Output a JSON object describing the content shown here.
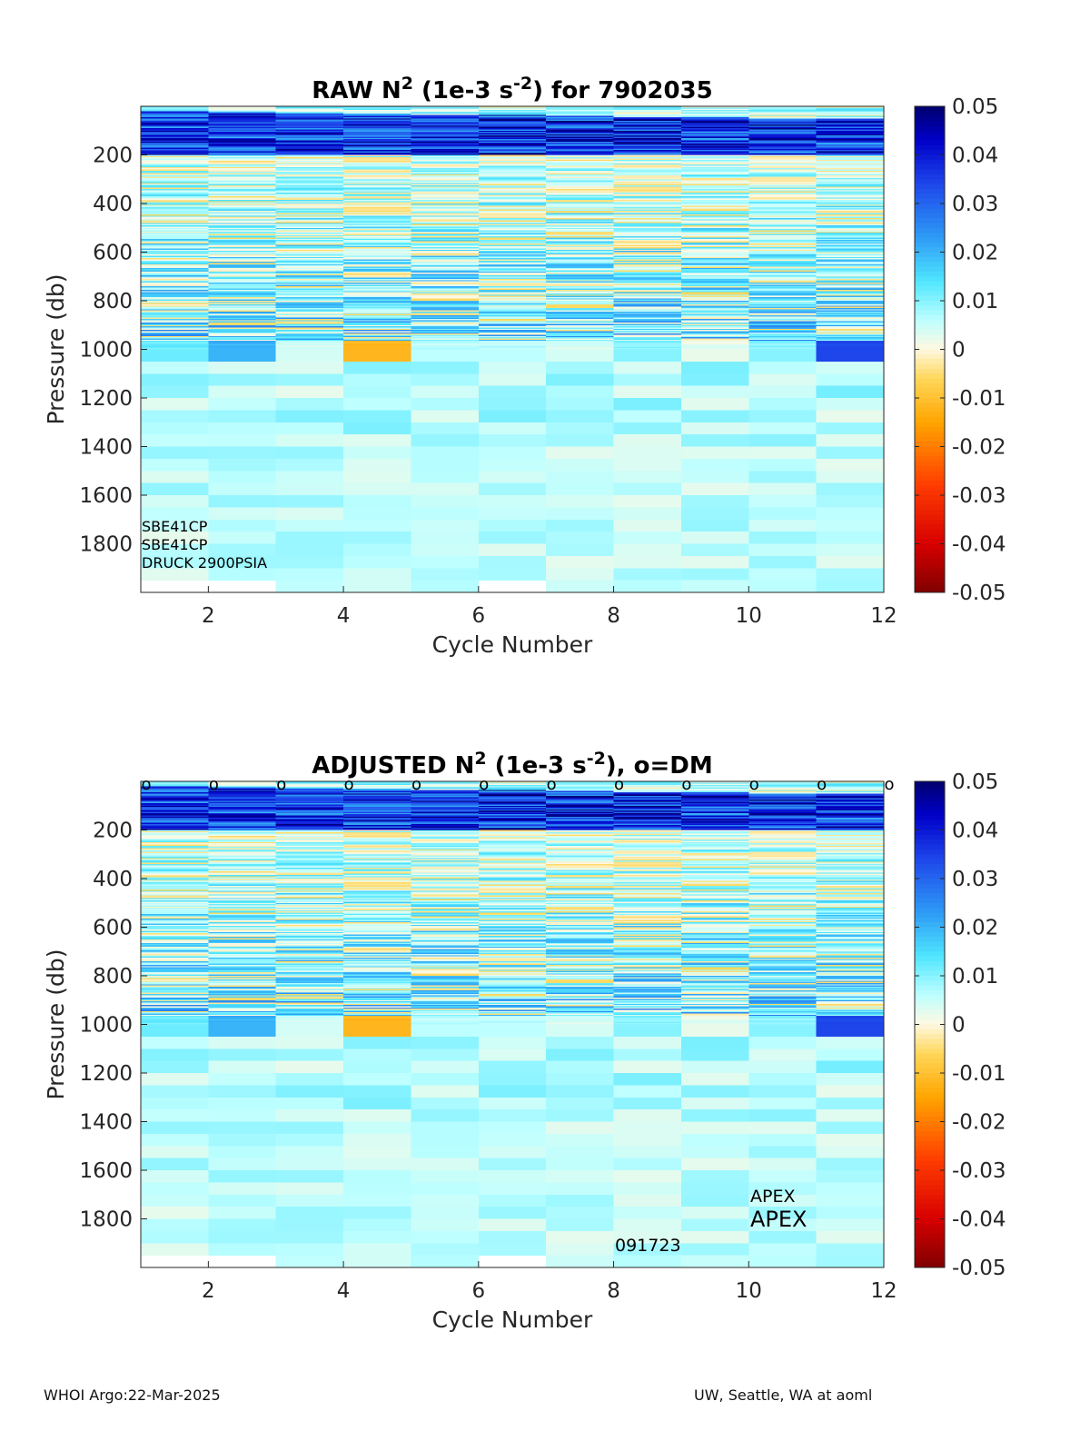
{
  "chart_data": [
    {
      "type": "heatmap",
      "title": {
        "pre": "RAW N",
        "sup1": "2",
        "mid": " (1e-3 s",
        "sup2": "-2",
        "post": ") for 7902035"
      },
      "xlabel": "Cycle Number",
      "ylabel": "Pressure (db)",
      "xlim": [
        1,
        12
      ],
      "ylim": [
        0,
        2000
      ],
      "xticks": [
        2,
        4,
        6,
        8,
        10,
        12
      ],
      "yticks": [
        200,
        400,
        600,
        800,
        1000,
        1200,
        1400,
        1600,
        1800
      ],
      "x": [
        1,
        2,
        3,
        4,
        5,
        6,
        7,
        8,
        9,
        10,
        11
      ],
      "max_pressure": [
        1950,
        1950,
        2000,
        2000,
        2000,
        1950,
        2000,
        2000,
        2000,
        2000,
        2000
      ],
      "upper_band_pressure": [
        0,
        200
      ],
      "upper_band_min_value": 0.02,
      "mid_layer_pressure": [
        200,
        1000
      ],
      "mid_layer_value_range": [
        -0.006,
        0.028
      ],
      "deep_layer_pressure": [
        1000,
        2000
      ],
      "deep_layer_value_range": [
        0.002,
        0.012
      ],
      "values_at_1000db": [
        0.012,
        0.02,
        0.004,
        -0.012,
        0.006,
        0.006,
        0.004,
        0.01,
        0.002,
        0.01,
        0.034
      ],
      "colorbar": {
        "range": [
          -0.05,
          0.05
        ],
        "ticks": [
          "0.05",
          "0.04",
          "0.03",
          "0.02",
          "0.01",
          "0",
          "-0.01",
          "-0.02",
          "-0.03",
          "-0.04",
          "-0.05"
        ]
      },
      "annotations": [
        "SBE41CP",
        "SBE41CP",
        "DRUCK 2900PSIA"
      ]
    },
    {
      "type": "heatmap",
      "title": {
        "pre": "ADJUSTED N",
        "sup1": "2",
        "mid": " (1e-3 s",
        "sup2": "-2",
        "post": "), o=DM"
      },
      "xlabel": "Cycle Number",
      "ylabel": "Pressure (db)",
      "xlim": [
        1,
        12
      ],
      "ylim": [
        0,
        2000
      ],
      "xticks": [
        2,
        4,
        6,
        8,
        10,
        12
      ],
      "yticks": [
        200,
        400,
        600,
        800,
        1000,
        1200,
        1400,
        1600,
        1800
      ],
      "x": [
        1,
        2,
        3,
        4,
        5,
        6,
        7,
        8,
        9,
        10,
        11
      ],
      "max_pressure": [
        1950,
        1950,
        2000,
        2000,
        2000,
        1950,
        2000,
        2000,
        2000,
        2000,
        2000
      ],
      "upper_band_pressure": [
        0,
        200
      ],
      "upper_band_min_value": 0.02,
      "mid_layer_pressure": [
        200,
        1000
      ],
      "mid_layer_value_range": [
        -0.006,
        0.028
      ],
      "deep_layer_pressure": [
        1000,
        2000
      ],
      "deep_layer_value_range": [
        0.002,
        0.012
      ],
      "values_at_1000db": [
        0.012,
        0.02,
        0.004,
        -0.012,
        0.006,
        0.006,
        0.004,
        0.01,
        0.002,
        0.01,
        0.034
      ],
      "dm_markers": {
        "symbol": "o",
        "x": [
          1,
          2,
          3,
          4,
          5,
          6,
          7,
          8,
          9,
          10,
          11,
          12
        ]
      },
      "colorbar": {
        "range": [
          -0.05,
          0.05
        ],
        "ticks": [
          "0.05",
          "0.04",
          "0.03",
          "0.02",
          "0.01",
          "0",
          "-0.01",
          "-0.02",
          "-0.03",
          "-0.04",
          "-0.05"
        ]
      },
      "annotations": [
        "APEX",
        "APEX",
        "091723"
      ]
    }
  ],
  "footer": {
    "left": "WHOI Argo:22-Mar-2025",
    "right": "UW, Seattle, WA at aoml"
  }
}
